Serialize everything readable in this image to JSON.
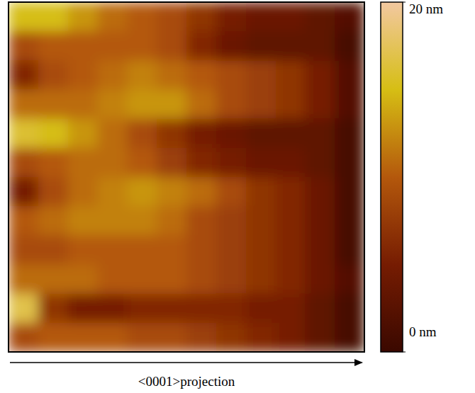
{
  "chart_data": {
    "type": "heatmap",
    "xlabel": "<0001>projection",
    "cells": [
      [
        15,
        15,
        13,
        11,
        10,
        9,
        7,
        5,
        4,
        4,
        3,
        2
      ],
      [
        9,
        10,
        10,
        10,
        10,
        9,
        6,
        4,
        3,
        3,
        3,
        1
      ],
      [
        6,
        9,
        10,
        11,
        12,
        11,
        10,
        9,
        8,
        7,
        5,
        2
      ],
      [
        11,
        11,
        11,
        12,
        13,
        13,
        11,
        9,
        8,
        7,
        5,
        2
      ],
      [
        16,
        15,
        13,
        11,
        9,
        7,
        5,
        4,
        3,
        3,
        3,
        1
      ],
      [
        9,
        10,
        11,
        11,
        10,
        8,
        6,
        5,
        4,
        4,
        3,
        1
      ],
      [
        5,
        9,
        11,
        12,
        13,
        12,
        11,
        9,
        7,
        6,
        4,
        1
      ],
      [
        10,
        11,
        12,
        12,
        12,
        11,
        9,
        8,
        7,
        6,
        4,
        1
      ],
      [
        9,
        9,
        10,
        10,
        10,
        10,
        9,
        8,
        7,
        6,
        4,
        1
      ],
      [
        11,
        11,
        11,
        10,
        10,
        10,
        9,
        8,
        7,
        6,
        4,
        2
      ],
      [
        17,
        7,
        5,
        5,
        6,
        6,
        6,
        6,
        5,
        5,
        3,
        1
      ],
      [
        9,
        10,
        10,
        10,
        9,
        9,
        8,
        7,
        6,
        5,
        3,
        1
      ]
    ],
    "colorbar_range": [
      0,
      20
    ],
    "colorbar_ticks": [
      {
        "value": 0,
        "label": "0 nm"
      },
      {
        "value": 20,
        "label": "20 nm"
      }
    ],
    "tick_labels": false
  }
}
